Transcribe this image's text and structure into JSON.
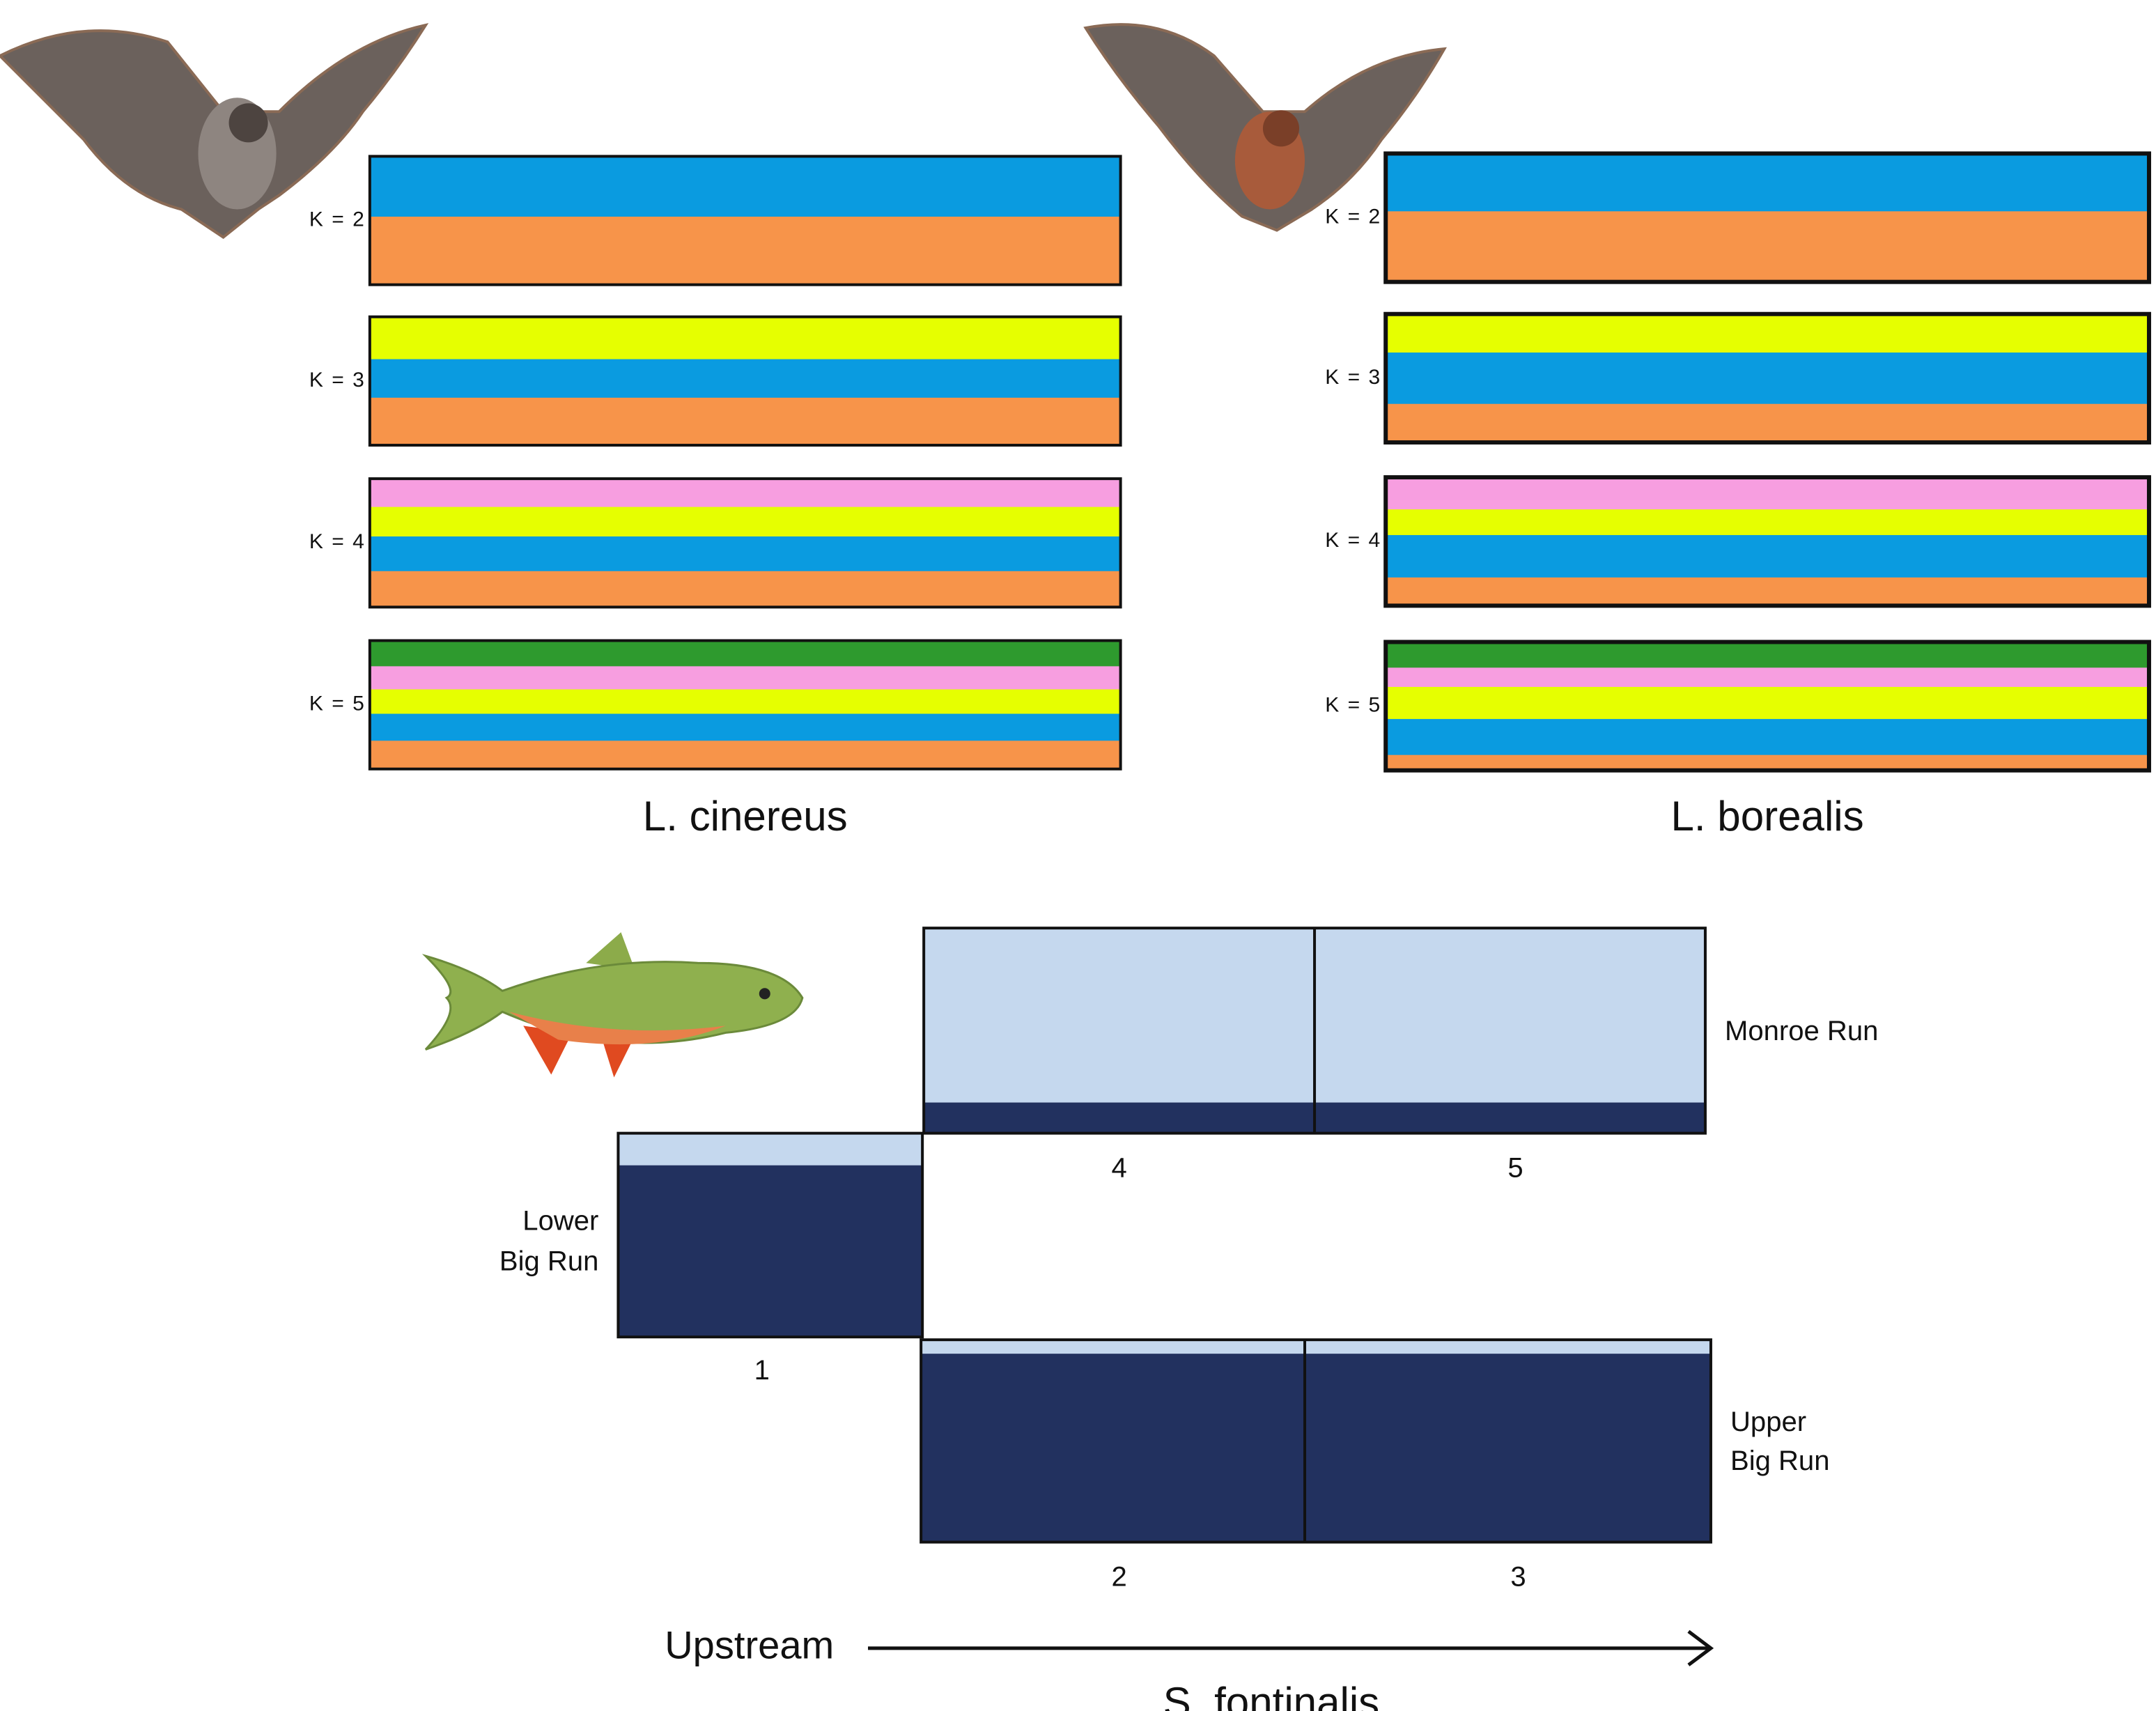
{
  "bat_panels": [
    {
      "species": "L. cinereus",
      "k_labels": [
        "K = 2",
        "K = 3",
        "K = 4",
        "K = 5"
      ]
    },
    {
      "species": "L. borealis",
      "k_labels": [
        "K = 2",
        "K = 3",
        "K = 4",
        "K = 5"
      ]
    }
  ],
  "fish_panel": {
    "species": "S. fontinalis",
    "populations": [
      {
        "name": [
          "Monroe Run"
        ],
        "sites": [
          "4",
          "5"
        ]
      },
      {
        "name": [
          "Lower",
          "Big Run"
        ],
        "sites": [
          "1"
        ]
      },
      {
        "name": [
          "Upper",
          "Big Run"
        ],
        "sites": [
          "2",
          "3"
        ]
      }
    ],
    "direction": "Upstream"
  }
}
